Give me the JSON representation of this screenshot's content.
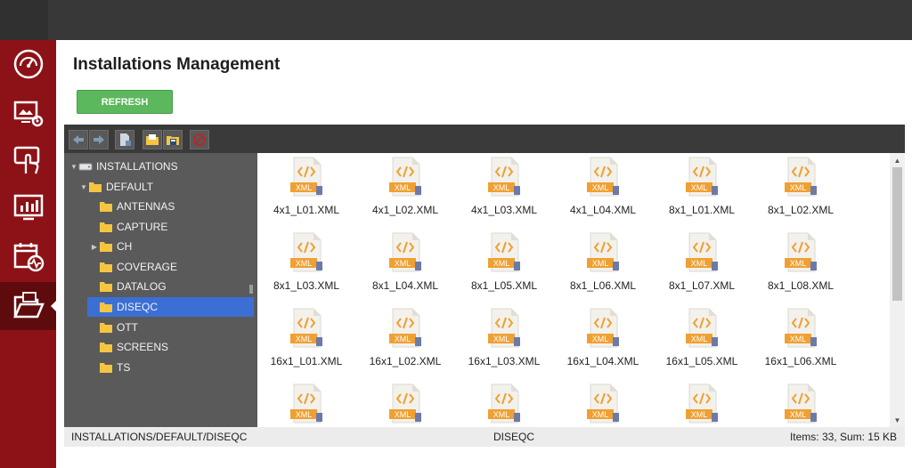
{
  "page": {
    "title": "Installations Management",
    "refresh_label": "REFRESH"
  },
  "sidebar": {
    "items": [
      {
        "name": "dashboard",
        "icon": "speedometer-icon",
        "active": false
      },
      {
        "name": "media-settings",
        "icon": "monitor-gear-icon",
        "active": false
      },
      {
        "name": "touch-screen",
        "icon": "hand-touch-icon",
        "active": false
      },
      {
        "name": "analytics",
        "icon": "bar-chart-monitor-icon",
        "active": false
      },
      {
        "name": "schedule",
        "icon": "calendar-pulse-icon",
        "active": false
      },
      {
        "name": "installations",
        "icon": "open-folder-icon",
        "active": true
      }
    ]
  },
  "toolbar": {
    "buttons": [
      "back-arrow-icon",
      "forward-arrow-icon",
      "new-file-icon",
      "open-folder-icon",
      "save-disk-icon",
      "delete-icon"
    ]
  },
  "tree": {
    "root": "INSTALLATIONS",
    "default": "DEFAULT",
    "folders": [
      "ANTENNAS",
      "CAPTURE",
      "CH",
      "COVERAGE",
      "DATALOG",
      "DISEQC",
      "OTT",
      "SCREENS",
      "TS"
    ],
    "selected": "DISEQC"
  },
  "files": [
    "4x1_L01.XML",
    "4x1_L02.XML",
    "4x1_L03.XML",
    "4x1_L04.XML",
    "8x1_L01.XML",
    "8x1_L02.XML",
    "8x1_L03.XML",
    "8x1_L04.XML",
    "8x1_L05.XML",
    "8x1_L06.XML",
    "8x1_L07.XML",
    "8x1_L08.XML",
    "16x1_L01.XML",
    "16x1_L02.XML",
    "16x1_L03.XML",
    "16x1_L04.XML",
    "16x1_L05.XML",
    "16x1_L06.XML",
    "",
    "",
    "",
    "",
    "",
    ""
  ],
  "file_badge": "XML",
  "status": {
    "path": "INSTALLATIONS/DEFAULT/DISEQC",
    "folder": "DISEQC",
    "summary": "Items: 33, Sum: 15 KB"
  },
  "colors": {
    "sidebar": "#8c1217",
    "accent": "#5cb85c",
    "selection": "#3b6fd6",
    "file_icon": "#f0a032"
  }
}
